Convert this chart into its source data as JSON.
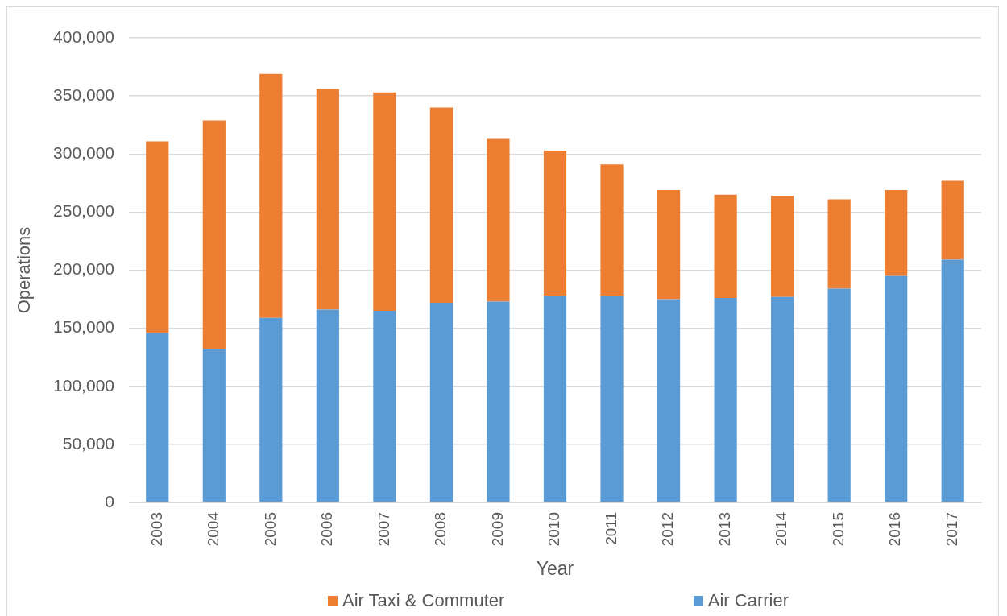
{
  "chart_data": {
    "type": "bar",
    "stacked": true,
    "xlabel": "Year",
    "ylabel": "Operations",
    "categories": [
      "2003",
      "2004",
      "2005",
      "2006",
      "2007",
      "2008",
      "2009",
      "2010",
      "2011",
      "2012",
      "2013",
      "2014",
      "2015",
      "2016",
      "2017"
    ],
    "series": [
      {
        "name": "Air Carrier",
        "color": "#5b9bd5",
        "values": [
          146000,
          132000,
          159000,
          166000,
          165000,
          172000,
          173000,
          178000,
          178000,
          175000,
          176000,
          177000,
          184000,
          195000,
          209000
        ]
      },
      {
        "name": "Air Taxi & Commuter",
        "color": "#ed7d31",
        "values": [
          165000,
          197000,
          210000,
          190000,
          188000,
          168000,
          140000,
          125000,
          113000,
          94000,
          89000,
          87000,
          77000,
          74000,
          68000
        ]
      }
    ],
    "ylim": [
      0,
      400000
    ],
    "yticks": [
      {
        "value": 0,
        "label": "0"
      },
      {
        "value": 50000,
        "label": "50,000"
      },
      {
        "value": 100000,
        "label": "100,000"
      },
      {
        "value": 150000,
        "label": "150,000"
      },
      {
        "value": 200000,
        "label": "200,000"
      },
      {
        "value": 250000,
        "label": "250,000"
      },
      {
        "value": 300000,
        "label": "300,000"
      },
      {
        "value": 350000,
        "label": "350,000"
      },
      {
        "value": 400000,
        "label": "400,000"
      }
    ],
    "grid": "y",
    "legend": "bottom"
  }
}
